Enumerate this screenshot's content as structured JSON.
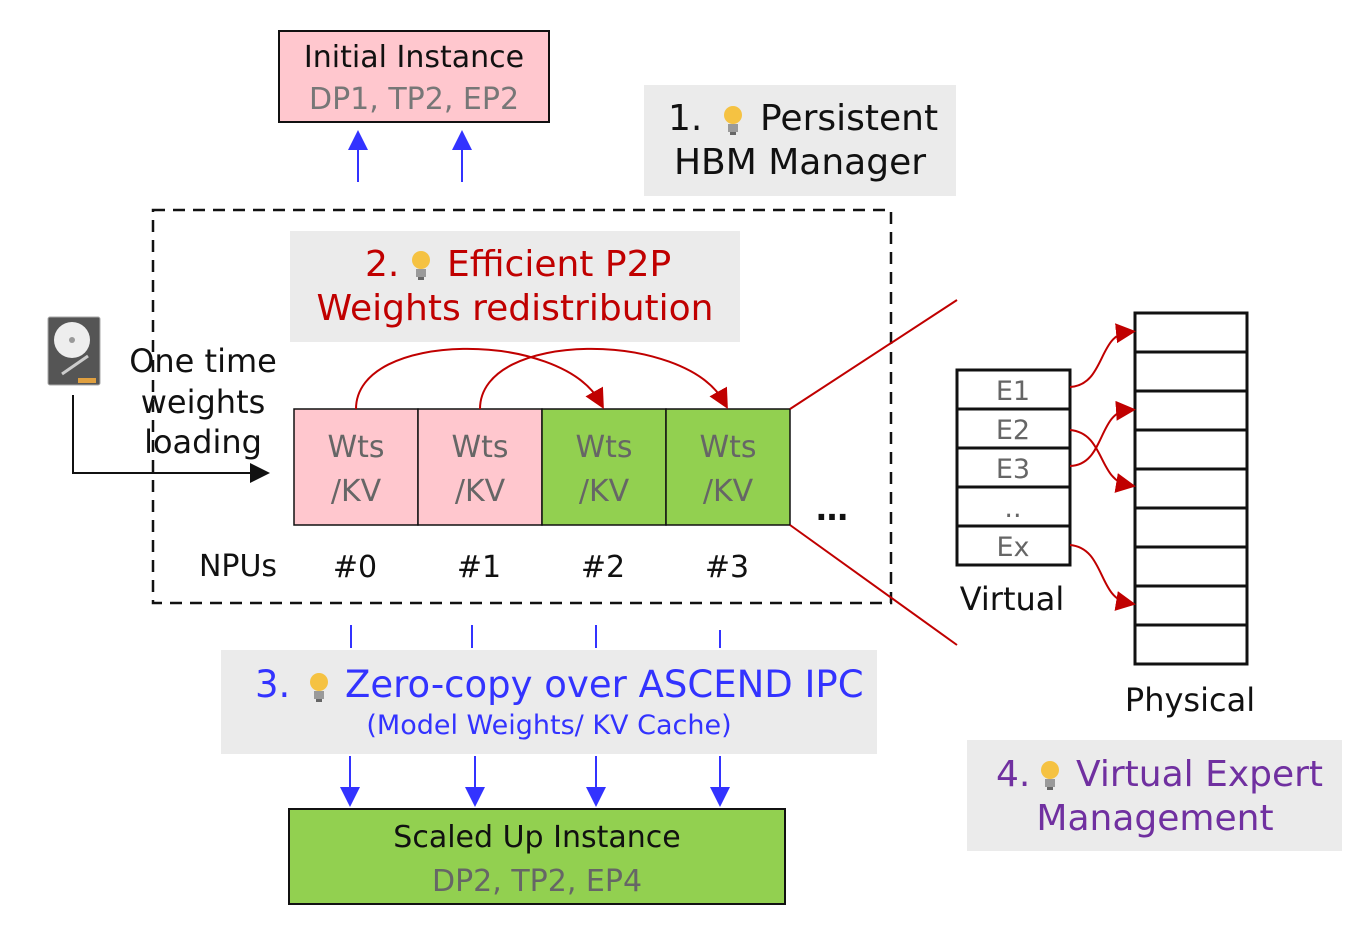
{
  "initial_instance": {
    "title": "Initial Instance",
    "config": "DP1, TP2, EP2"
  },
  "feature1": {
    "number": "1.",
    "line1": "Persistent",
    "line2": "HBM Manager",
    "icon": "lightbulb-icon"
  },
  "feature2": {
    "number": "2.",
    "line1": "Efficient P2P",
    "line2": "Weights redistribution",
    "icon": "lightbulb-icon"
  },
  "feature3": {
    "number": "3.",
    "line1": "Zero-copy over ASCEND IPC",
    "line2": "(Model Weights/ KV Cache)",
    "icon": "lightbulb-icon"
  },
  "feature4": {
    "number": "4.",
    "line1": "Virtual Expert",
    "line2": "Management",
    "icon": "lightbulb-icon"
  },
  "loading": {
    "icon": "hard-drive-icon",
    "lines": [
      "One time",
      "weights",
      "loading"
    ]
  },
  "npus": {
    "label": "NPUs",
    "ellipsis": "…",
    "cells": [
      {
        "id": "#0",
        "line1": "Wts",
        "line2": "/KV",
        "color": "#ffc7ce"
      },
      {
        "id": "#1",
        "line1": "Wts",
        "line2": "/KV",
        "color": "#ffc7ce"
      },
      {
        "id": "#2",
        "line1": "Wts",
        "line2": "/KV",
        "color": "#92d050"
      },
      {
        "id": "#3",
        "line1": "Wts",
        "line2": "/KV",
        "color": "#92d050"
      }
    ]
  },
  "virtual": {
    "label": "Virtual",
    "entries": [
      "E1",
      "E2",
      "E3",
      "..",
      "Ex"
    ]
  },
  "physical": {
    "label": "Physical"
  },
  "scaled_instance": {
    "title": "Scaled Up Instance",
    "config": "DP2, TP2, EP4"
  },
  "colors": {
    "red": "#c00000",
    "blue": "#3333ff",
    "purple": "#7030a0",
    "pink": "#ffc7ce",
    "green": "#92d050",
    "panel": "#ebebeb"
  }
}
